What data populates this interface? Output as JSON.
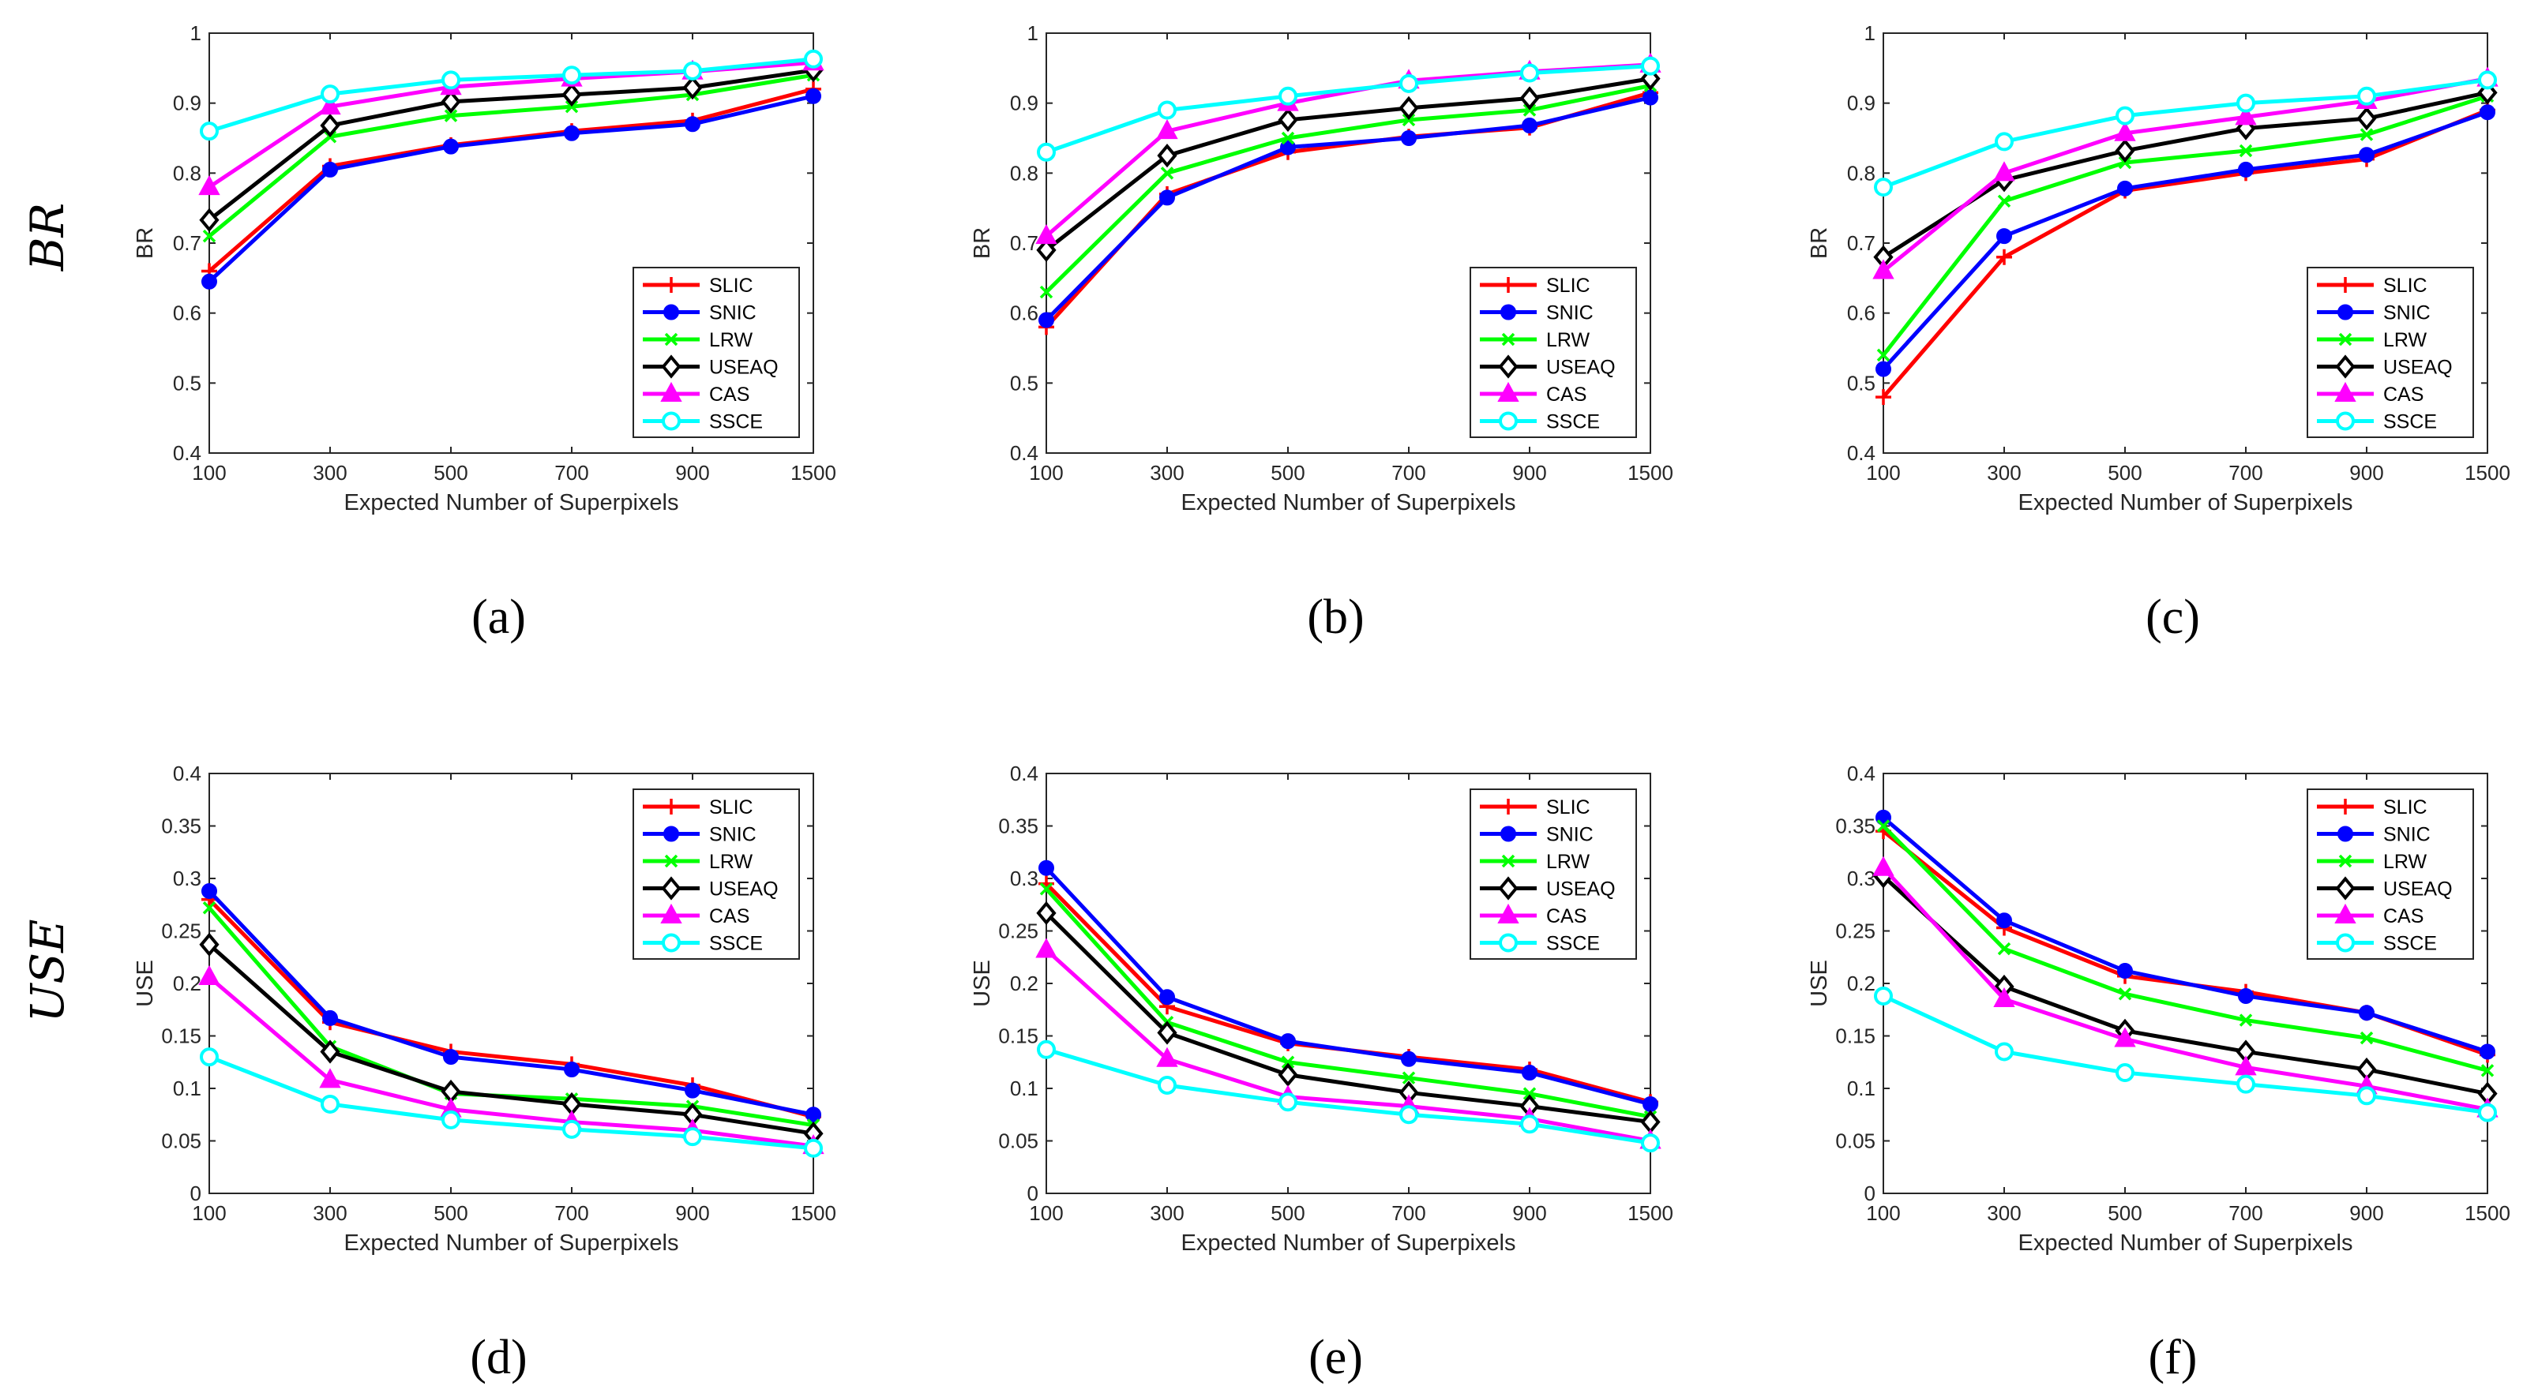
{
  "row_labels": [
    "BR",
    "USE"
  ],
  "chart_data": [
    {
      "type": "line",
      "subplot_label": "(a)",
      "xlabel": "Expected Number of Superpixels",
      "ylabel": "BR",
      "categories": [
        "100",
        "300",
        "500",
        "700",
        "900",
        "1500"
      ],
      "ylim": [
        0.4,
        1
      ],
      "yticks": [
        "0.4",
        "0.5",
        "0.6",
        "0.7",
        "0.8",
        "0.9",
        "1"
      ],
      "legend_position": "bottom-right",
      "series": [
        {
          "name": "SLIC",
          "values": [
            0.66,
            0.81,
            0.84,
            0.86,
            0.875,
            0.92
          ]
        },
        {
          "name": "SNIC",
          "values": [
            0.645,
            0.805,
            0.838,
            0.857,
            0.87,
            0.91
          ]
        },
        {
          "name": "LRW",
          "values": [
            0.71,
            0.852,
            0.882,
            0.895,
            0.912,
            0.94
          ]
        },
        {
          "name": "USEAQ",
          "values": [
            0.733,
            0.868,
            0.902,
            0.912,
            0.922,
            0.947
          ]
        },
        {
          "name": "CAS",
          "values": [
            0.78,
            0.895,
            0.923,
            0.935,
            0.945,
            0.958
          ]
        },
        {
          "name": "SSCE",
          "values": [
            0.86,
            0.913,
            0.933,
            0.94,
            0.946,
            0.963
          ]
        }
      ]
    },
    {
      "type": "line",
      "subplot_label": "(b)",
      "xlabel": "Expected Number of Superpixels",
      "ylabel": "BR",
      "categories": [
        "100",
        "300",
        "500",
        "700",
        "900",
        "1500"
      ],
      "ylim": [
        0.4,
        1
      ],
      "yticks": [
        "0.4",
        "0.5",
        "0.6",
        "0.7",
        "0.8",
        "0.9",
        "1"
      ],
      "legend_position": "bottom-right",
      "series": [
        {
          "name": "SLIC",
          "values": [
            0.58,
            0.77,
            0.83,
            0.852,
            0.865,
            0.915
          ]
        },
        {
          "name": "SNIC",
          "values": [
            0.59,
            0.765,
            0.837,
            0.85,
            0.868,
            0.908
          ]
        },
        {
          "name": "LRW",
          "values": [
            0.63,
            0.8,
            0.85,
            0.876,
            0.89,
            0.925
          ]
        },
        {
          "name": "USEAQ",
          "values": [
            0.69,
            0.825,
            0.876,
            0.893,
            0.907,
            0.935
          ]
        },
        {
          "name": "CAS",
          "values": [
            0.71,
            0.86,
            0.9,
            0.932,
            0.945,
            0.955
          ]
        },
        {
          "name": "SSCE",
          "values": [
            0.83,
            0.89,
            0.91,
            0.928,
            0.943,
            0.953
          ]
        }
      ]
    },
    {
      "type": "line",
      "subplot_label": "(c)",
      "xlabel": "Expected Number of Superpixels",
      "ylabel": "BR",
      "categories": [
        "100",
        "300",
        "500",
        "700",
        "900",
        "1500"
      ],
      "ylim": [
        0.4,
        1
      ],
      "yticks": [
        "0.4",
        "0.5",
        "0.6",
        "0.7",
        "0.8",
        "0.9",
        "1"
      ],
      "legend_position": "bottom-right",
      "series": [
        {
          "name": "SLIC",
          "values": [
            0.48,
            0.68,
            0.775,
            0.8,
            0.82,
            0.89
          ]
        },
        {
          "name": "SNIC",
          "values": [
            0.52,
            0.71,
            0.778,
            0.805,
            0.826,
            0.887
          ]
        },
        {
          "name": "LRW",
          "values": [
            0.54,
            0.76,
            0.815,
            0.832,
            0.855,
            0.91
          ]
        },
        {
          "name": "USEAQ",
          "values": [
            0.68,
            0.79,
            0.832,
            0.864,
            0.878,
            0.915
          ]
        },
        {
          "name": "CAS",
          "values": [
            0.66,
            0.8,
            0.857,
            0.88,
            0.903,
            0.935
          ]
        },
        {
          "name": "SSCE",
          "values": [
            0.78,
            0.845,
            0.882,
            0.9,
            0.91,
            0.933
          ]
        }
      ]
    },
    {
      "type": "line",
      "subplot_label": "(d)",
      "xlabel": "Expected Number of Superpixels",
      "ylabel": "USE",
      "categories": [
        "100",
        "300",
        "500",
        "700",
        "900",
        "1500"
      ],
      "ylim": [
        0,
        0.4
      ],
      "yticks": [
        "0",
        "0.05",
        "0.1",
        "0.15",
        "0.2",
        "0.25",
        "0.3",
        "0.35",
        "0.4"
      ],
      "legend_position": "top-right",
      "series": [
        {
          "name": "SLIC",
          "values": [
            0.28,
            0.163,
            0.135,
            0.123,
            0.103,
            0.073
          ]
        },
        {
          "name": "SNIC",
          "values": [
            0.288,
            0.167,
            0.13,
            0.118,
            0.098,
            0.075
          ]
        },
        {
          "name": "LRW",
          "values": [
            0.272,
            0.14,
            0.095,
            0.09,
            0.083,
            0.065
          ]
        },
        {
          "name": "USEAQ",
          "values": [
            0.237,
            0.135,
            0.097,
            0.085,
            0.075,
            0.057
          ]
        },
        {
          "name": "CAS",
          "values": [
            0.206,
            0.108,
            0.08,
            0.068,
            0.06,
            0.045
          ]
        },
        {
          "name": "SSCE",
          "values": [
            0.13,
            0.085,
            0.07,
            0.061,
            0.054,
            0.043
          ]
        }
      ]
    },
    {
      "type": "line",
      "subplot_label": "(e)",
      "xlabel": "Expected Number of Superpixels",
      "ylabel": "USE",
      "categories": [
        "100",
        "300",
        "500",
        "700",
        "900",
        "1500"
      ],
      "ylim": [
        0,
        0.4
      ],
      "yticks": [
        "0",
        "0.05",
        "0.1",
        "0.15",
        "0.2",
        "0.25",
        "0.3",
        "0.35",
        "0.4"
      ],
      "legend_position": "top-right",
      "series": [
        {
          "name": "SLIC",
          "values": [
            0.295,
            0.178,
            0.143,
            0.13,
            0.118,
            0.087
          ]
        },
        {
          "name": "SNIC",
          "values": [
            0.31,
            0.187,
            0.145,
            0.128,
            0.115,
            0.085
          ]
        },
        {
          "name": "LRW",
          "values": [
            0.29,
            0.163,
            0.125,
            0.11,
            0.095,
            0.073
          ]
        },
        {
          "name": "USEAQ",
          "values": [
            0.267,
            0.153,
            0.113,
            0.096,
            0.083,
            0.068
          ]
        },
        {
          "name": "CAS",
          "values": [
            0.232,
            0.128,
            0.092,
            0.083,
            0.071,
            0.05
          ]
        },
        {
          "name": "SSCE",
          "values": [
            0.137,
            0.103,
            0.087,
            0.075,
            0.066,
            0.048
          ]
        }
      ]
    },
    {
      "type": "line",
      "subplot_label": "(f)",
      "xlabel": "Expected Number of Superpixels",
      "ylabel": "USE",
      "categories": [
        "100",
        "300",
        "500",
        "700",
        "900",
        "1500"
      ],
      "ylim": [
        0,
        0.4
      ],
      "yticks": [
        "0",
        "0.05",
        "0.1",
        "0.15",
        "0.2",
        "0.25",
        "0.3",
        "0.35",
        "0.4"
      ],
      "legend_position": "top-right",
      "series": [
        {
          "name": "SLIC",
          "values": [
            0.345,
            0.253,
            0.207,
            0.192,
            0.172,
            0.132
          ]
        },
        {
          "name": "SNIC",
          "values": [
            0.358,
            0.26,
            0.212,
            0.188,
            0.172,
            0.135
          ]
        },
        {
          "name": "LRW",
          "values": [
            0.35,
            0.233,
            0.19,
            0.165,
            0.148,
            0.117
          ]
        },
        {
          "name": "USEAQ",
          "values": [
            0.302,
            0.197,
            0.155,
            0.135,
            0.118,
            0.095
          ]
        },
        {
          "name": "CAS",
          "values": [
            0.31,
            0.185,
            0.147,
            0.12,
            0.102,
            0.08
          ]
        },
        {
          "name": "SSCE",
          "values": [
            0.188,
            0.135,
            0.115,
            0.104,
            0.093,
            0.077
          ]
        }
      ]
    }
  ],
  "series_style": {
    "SLIC": {
      "color": "#ff0000",
      "marker": "plus"
    },
    "SNIC": {
      "color": "#0000ff",
      "marker": "circle-filled"
    },
    "LRW": {
      "color": "#00ff00",
      "marker": "x"
    },
    "USEAQ": {
      "color": "#000000",
      "marker": "diamond-open"
    },
    "CAS": {
      "color": "#ff00ff",
      "marker": "triangle-filled"
    },
    "SSCE": {
      "color": "#00ffff",
      "marker": "circle-open"
    }
  }
}
